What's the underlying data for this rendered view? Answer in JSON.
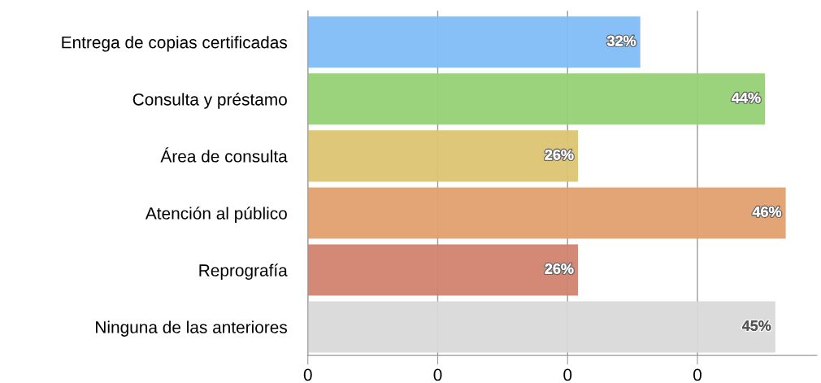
{
  "chart_data": {
    "type": "bar",
    "orientation": "horizontal",
    "categories": [
      "Entrega de copias certificadas",
      "Consulta y préstamo",
      "Área de consulta",
      "Atención al público",
      "Reprografía",
      "Ninguna de las anteriores"
    ],
    "values": [
      0.32,
      0.44,
      0.26,
      0.46,
      0.26,
      0.45
    ],
    "value_labels": [
      "32%",
      "44%",
      "26%",
      "46%",
      "26%",
      "45%"
    ],
    "colors": [
      "#80bdf5",
      "#96d175",
      "#dcc471",
      "#e2a06e",
      "#d2836f",
      "#d9d9d9"
    ],
    "xlim": [
      0,
      0.49
    ],
    "xticks": [
      0,
      {
        "value": 0.125,
        "label": "0"
      },
      {
        "value": 0.25,
        "label": "0"
      },
      {
        "value": 0.375,
        "label": "0"
      }
    ],
    "grid": "x"
  }
}
